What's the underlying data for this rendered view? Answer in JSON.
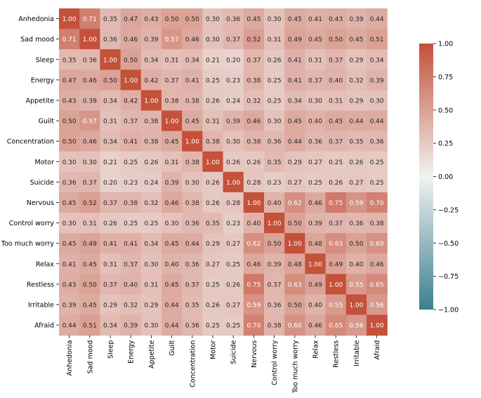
{
  "chart_data": {
    "type": "heatmap",
    "title": "",
    "xlabel": "",
    "ylabel": "",
    "labels": [
      "Anhedonia",
      "Sad mood",
      "Sleep",
      "Energy",
      "Appetite",
      "Guilt",
      "Concentration",
      "Motor",
      "Suicide",
      "Nervous",
      "Control worry",
      "Too much worry",
      "Relax",
      "Restless",
      "Irritable",
      "Afraid"
    ],
    "matrix": [
      [
        1.0,
        0.71,
        0.35,
        0.47,
        0.43,
        0.5,
        0.5,
        0.3,
        0.36,
        0.45,
        0.3,
        0.45,
        0.41,
        0.43,
        0.39,
        0.44
      ],
      [
        0.71,
        1.0,
        0.36,
        0.46,
        0.39,
        0.57,
        0.46,
        0.3,
        0.37,
        0.52,
        0.31,
        0.49,
        0.45,
        0.5,
        0.45,
        0.51
      ],
      [
        0.35,
        0.36,
        1.0,
        0.5,
        0.34,
        0.31,
        0.34,
        0.21,
        0.2,
        0.37,
        0.26,
        0.41,
        0.31,
        0.37,
        0.29,
        0.34
      ],
      [
        0.47,
        0.46,
        0.5,
        1.0,
        0.42,
        0.37,
        0.41,
        0.25,
        0.23,
        0.38,
        0.25,
        0.41,
        0.37,
        0.4,
        0.32,
        0.39
      ],
      [
        0.43,
        0.39,
        0.34,
        0.42,
        1.0,
        0.38,
        0.38,
        0.26,
        0.24,
        0.32,
        0.25,
        0.34,
        0.3,
        0.31,
        0.29,
        0.3
      ],
      [
        0.5,
        0.57,
        0.31,
        0.37,
        0.38,
        1.0,
        0.45,
        0.31,
        0.39,
        0.46,
        0.3,
        0.45,
        0.4,
        0.45,
        0.44,
        0.44
      ],
      [
        0.5,
        0.46,
        0.34,
        0.41,
        0.38,
        0.45,
        1.0,
        0.38,
        0.3,
        0.38,
        0.36,
        0.44,
        0.36,
        0.37,
        0.35,
        0.36
      ],
      [
        0.3,
        0.3,
        0.21,
        0.25,
        0.26,
        0.31,
        0.38,
        1.0,
        0.26,
        0.26,
        0.35,
        0.29,
        0.27,
        0.25,
        0.26,
        0.25
      ],
      [
        0.36,
        0.37,
        0.2,
        0.23,
        0.24,
        0.39,
        0.3,
        0.26,
        1.0,
        0.28,
        0.23,
        0.27,
        0.25,
        0.26,
        0.27,
        0.25
      ],
      [
        0.45,
        0.52,
        0.37,
        0.38,
        0.32,
        0.46,
        0.38,
        0.26,
        0.28,
        1.0,
        0.4,
        0.62,
        0.46,
        0.75,
        0.59,
        0.7
      ],
      [
        0.3,
        0.31,
        0.26,
        0.25,
        0.25,
        0.3,
        0.36,
        0.35,
        0.23,
        0.4,
        1.0,
        0.5,
        0.39,
        0.37,
        0.36,
        0.38
      ],
      [
        0.45,
        0.49,
        0.41,
        0.41,
        0.34,
        0.45,
        0.44,
        0.29,
        0.27,
        0.62,
        0.5,
        1.0,
        0.48,
        0.63,
        0.5,
        0.6
      ],
      [
        0.41,
        0.45,
        0.31,
        0.37,
        0.3,
        0.4,
        0.36,
        0.27,
        0.25,
        0.46,
        0.39,
        0.48,
        1.0,
        0.49,
        0.4,
        0.46
      ],
      [
        0.43,
        0.5,
        0.37,
        0.4,
        0.31,
        0.45,
        0.37,
        0.25,
        0.26,
        0.75,
        0.37,
        0.63,
        0.49,
        1.0,
        0.55,
        0.65
      ],
      [
        0.39,
        0.45,
        0.29,
        0.32,
        0.29,
        0.44,
        0.35,
        0.26,
        0.27,
        0.59,
        0.36,
        0.5,
        0.4,
        0.55,
        1.0,
        0.56
      ],
      [
        0.44,
        0.51,
        0.34,
        0.39,
        0.3,
        0.44,
        0.36,
        0.25,
        0.25,
        0.7,
        0.38,
        0.6,
        0.46,
        0.65,
        0.56,
        1.0
      ]
    ],
    "colorbar": {
      "min": -1.0,
      "max": 1.0,
      "ticks": [
        "1.00",
        "0.75",
        "0.50",
        "0.25",
        "0.00",
        "−0.25",
        "−0.50",
        "−0.75",
        "−1.00"
      ],
      "tick_values": [
        1.0,
        0.75,
        0.5,
        0.25,
        0.0,
        -0.25,
        -0.5,
        -0.75,
        -1.0
      ],
      "color_low": "#3b7f8f",
      "color_mid": "#f2f2f2",
      "color_high": "#c4513a"
    }
  }
}
